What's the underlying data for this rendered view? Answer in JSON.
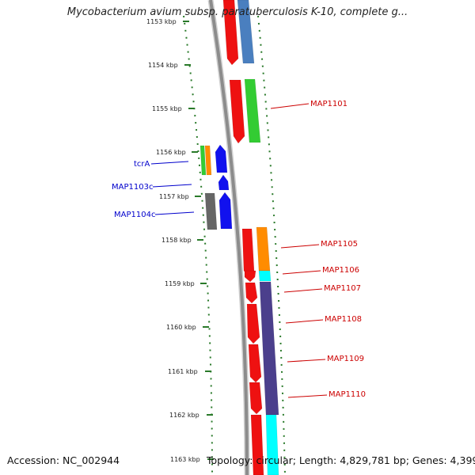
{
  "title": "Mycobacterium avium subsp. paratuberculosis K-10, complete g...",
  "accession": "Accession: NC_002944",
  "summary": "Topology: circular; Length: 4,829,781 bp; Genes: 4,399",
  "ruler_labels": [
    "1153 kbp",
    "1154 kbp",
    "1155 kbp",
    "1156 kbp",
    "1157 kbp",
    "1158 kbp",
    "1159 kbp",
    "1160 kbp",
    "1161 kbp",
    "1162 kbp",
    "1163 kbp"
  ],
  "left_gene_labels": [
    "tcrA",
    "MAP1103c",
    "MAP1104c"
  ],
  "right_gene_labels": [
    "MAP1101",
    "MAP1105",
    "MAP1106",
    "MAP1107",
    "MAP1108",
    "MAP1109",
    "MAP1110"
  ],
  "colors": {
    "forward_label": "#cc0000",
    "reverse_label": "#0000cc",
    "backbone": "#8c8c8c",
    "ticks": "#2a7a2a",
    "cds_red": "#ee1111",
    "cds_blue": "#1111ee",
    "orange": "#ff8c00",
    "green": "#33cc33",
    "cyan": "#00ffff",
    "purple": "#4b3f8c",
    "steelblue": "#4a7fbf",
    "gray": "#666666"
  }
}
